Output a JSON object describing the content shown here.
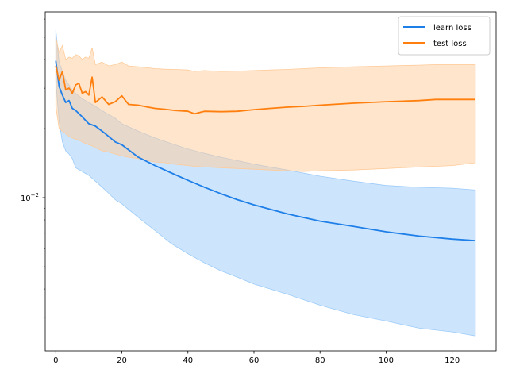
{
  "chart_data": {
    "type": "line",
    "yscale": "log",
    "xlim": [
      -3.2,
      133.3
    ],
    "ylim": [
      0.00215,
      0.0645
    ],
    "x_ticks": [
      0,
      20,
      40,
      60,
      80,
      100,
      120
    ],
    "x_tick_labels": [
      "0",
      "20",
      "40",
      "60",
      "80",
      "100",
      "120"
    ],
    "y_major_ticks": [
      0.01
    ],
    "y_minor_ticks": [
      0.003,
      0.004,
      0.005,
      0.006,
      0.007,
      0.008,
      0.009,
      0.02,
      0.03,
      0.04,
      0.05,
      0.06
    ],
    "y_tick_labels": [
      {
        "base": "10",
        "exp": "−2"
      }
    ],
    "grid": false,
    "legend": {
      "placement": "top-right",
      "entries": [
        "learn loss",
        "test loss"
      ]
    },
    "series": [
      {
        "name": "learn loss",
        "color": "#1f7fe8",
        "band_color": "#9ccbfa",
        "x": [
          0,
          1,
          2,
          3,
          4,
          5,
          6,
          8,
          10,
          12,
          15,
          18,
          20,
          25,
          30,
          35,
          40,
          45,
          50,
          55,
          60,
          70,
          80,
          90,
          100,
          110,
          120,
          127
        ],
        "values": [
          0.0395,
          0.0305,
          0.028,
          0.026,
          0.0265,
          0.0245,
          0.024,
          0.0225,
          0.021,
          0.0205,
          0.019,
          0.0175,
          0.017,
          0.015,
          0.0138,
          0.0128,
          0.0119,
          0.0111,
          0.0104,
          0.0098,
          0.0093,
          0.0085,
          0.0079,
          0.0075,
          0.0071,
          0.0068,
          0.0066,
          0.0065
        ],
        "lower": [
          0.032,
          0.0215,
          0.0175,
          0.016,
          0.0155,
          0.0148,
          0.0135,
          0.013,
          0.0125,
          0.0118,
          0.0108,
          0.0098,
          0.0094,
          0.0082,
          0.0072,
          0.0063,
          0.0057,
          0.0052,
          0.0048,
          0.0045,
          0.0042,
          0.0038,
          0.0034,
          0.0031,
          0.0029,
          0.0027,
          0.0026,
          0.0025
        ],
        "upper": [
          0.054,
          0.039,
          0.0355,
          0.0325,
          0.031,
          0.0295,
          0.0285,
          0.027,
          0.026,
          0.025,
          0.0235,
          0.0222,
          0.021,
          0.0195,
          0.0182,
          0.0172,
          0.0163,
          0.0156,
          0.015,
          0.0145,
          0.014,
          0.0132,
          0.0124,
          0.0118,
          0.0113,
          0.0111,
          0.011,
          0.0108
        ]
      },
      {
        "name": "test loss",
        "color": "#ff7f0e",
        "band_color": "#ffcb99",
        "x": [
          0,
          1,
          2,
          3,
          4,
          5,
          6,
          7,
          8,
          9,
          10,
          11,
          12,
          14,
          16,
          18,
          20,
          22,
          25,
          28,
          30,
          33,
          36,
          40,
          42,
          45,
          50,
          55,
          60,
          65,
          70,
          75,
          80,
          90,
          100,
          110,
          115,
          120,
          127
        ],
        "values": [
          0.0375,
          0.0325,
          0.0355,
          0.0295,
          0.03,
          0.0285,
          0.031,
          0.0315,
          0.0285,
          0.029,
          0.028,
          0.0335,
          0.026,
          0.0275,
          0.0255,
          0.0262,
          0.0278,
          0.0255,
          0.0253,
          0.0248,
          0.0245,
          0.0243,
          0.024,
          0.0238,
          0.0232,
          0.0238,
          0.0237,
          0.0238,
          0.0242,
          0.0245,
          0.0248,
          0.025,
          0.0253,
          0.0258,
          0.0262,
          0.0265,
          0.0268,
          0.0268,
          0.0268
        ],
        "lower": [
          0.025,
          0.02,
          0.0195,
          0.019,
          0.0185,
          0.0182,
          0.018,
          0.0178,
          0.0175,
          0.0172,
          0.017,
          0.0168,
          0.0165,
          0.016,
          0.0158,
          0.0155,
          0.0152,
          0.015,
          0.0148,
          0.0145,
          0.0143,
          0.0142,
          0.014,
          0.0138,
          0.0137,
          0.0136,
          0.0135,
          0.0134,
          0.0133,
          0.0132,
          0.0131,
          0.013,
          0.0131,
          0.0132,
          0.0134,
          0.0136,
          0.0137,
          0.0138,
          0.0142
        ],
        "upper": [
          0.05,
          0.043,
          0.046,
          0.04,
          0.041,
          0.0405,
          0.042,
          0.0415,
          0.04,
          0.041,
          0.0405,
          0.045,
          0.038,
          0.039,
          0.0375,
          0.038,
          0.039,
          0.0375,
          0.0372,
          0.0368,
          0.0365,
          0.0363,
          0.0362,
          0.036,
          0.0355,
          0.0358,
          0.0355,
          0.0356,
          0.0358,
          0.036,
          0.0362,
          0.0365,
          0.0368,
          0.0372,
          0.0375,
          0.0378,
          0.038,
          0.038,
          0.038
        ]
      }
    ]
  }
}
